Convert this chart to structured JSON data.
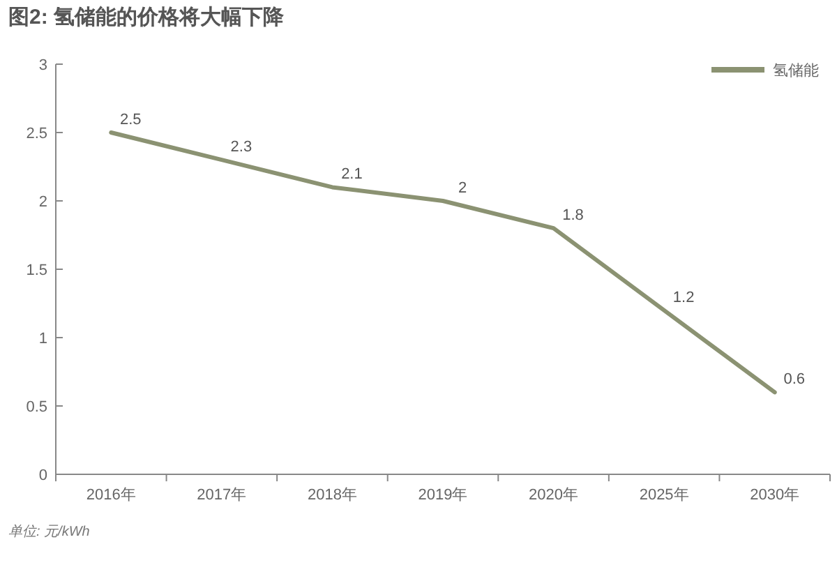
{
  "chart_data": {
    "type": "line",
    "title": "图2: 氢储能的价格将大幅下降",
    "categories": [
      "2016年",
      "2017年",
      "2018年",
      "2019年",
      "2020年",
      "2025年",
      "2030年"
    ],
    "series": [
      {
        "name": "氢储能",
        "color": "#8b9272",
        "values": [
          2.5,
          2.3,
          2.1,
          2,
          1.8,
          1.2,
          0.6
        ]
      }
    ],
    "ylim": [
      0,
      3
    ],
    "yticks": [
      0,
      0.5,
      1,
      1.5,
      2,
      2.5,
      3
    ],
    "data_labels": true,
    "legend": "top right",
    "grid": false,
    "marker": "none",
    "line_style": "solid",
    "annotations": [
      "单位: 元/kWh"
    ]
  }
}
